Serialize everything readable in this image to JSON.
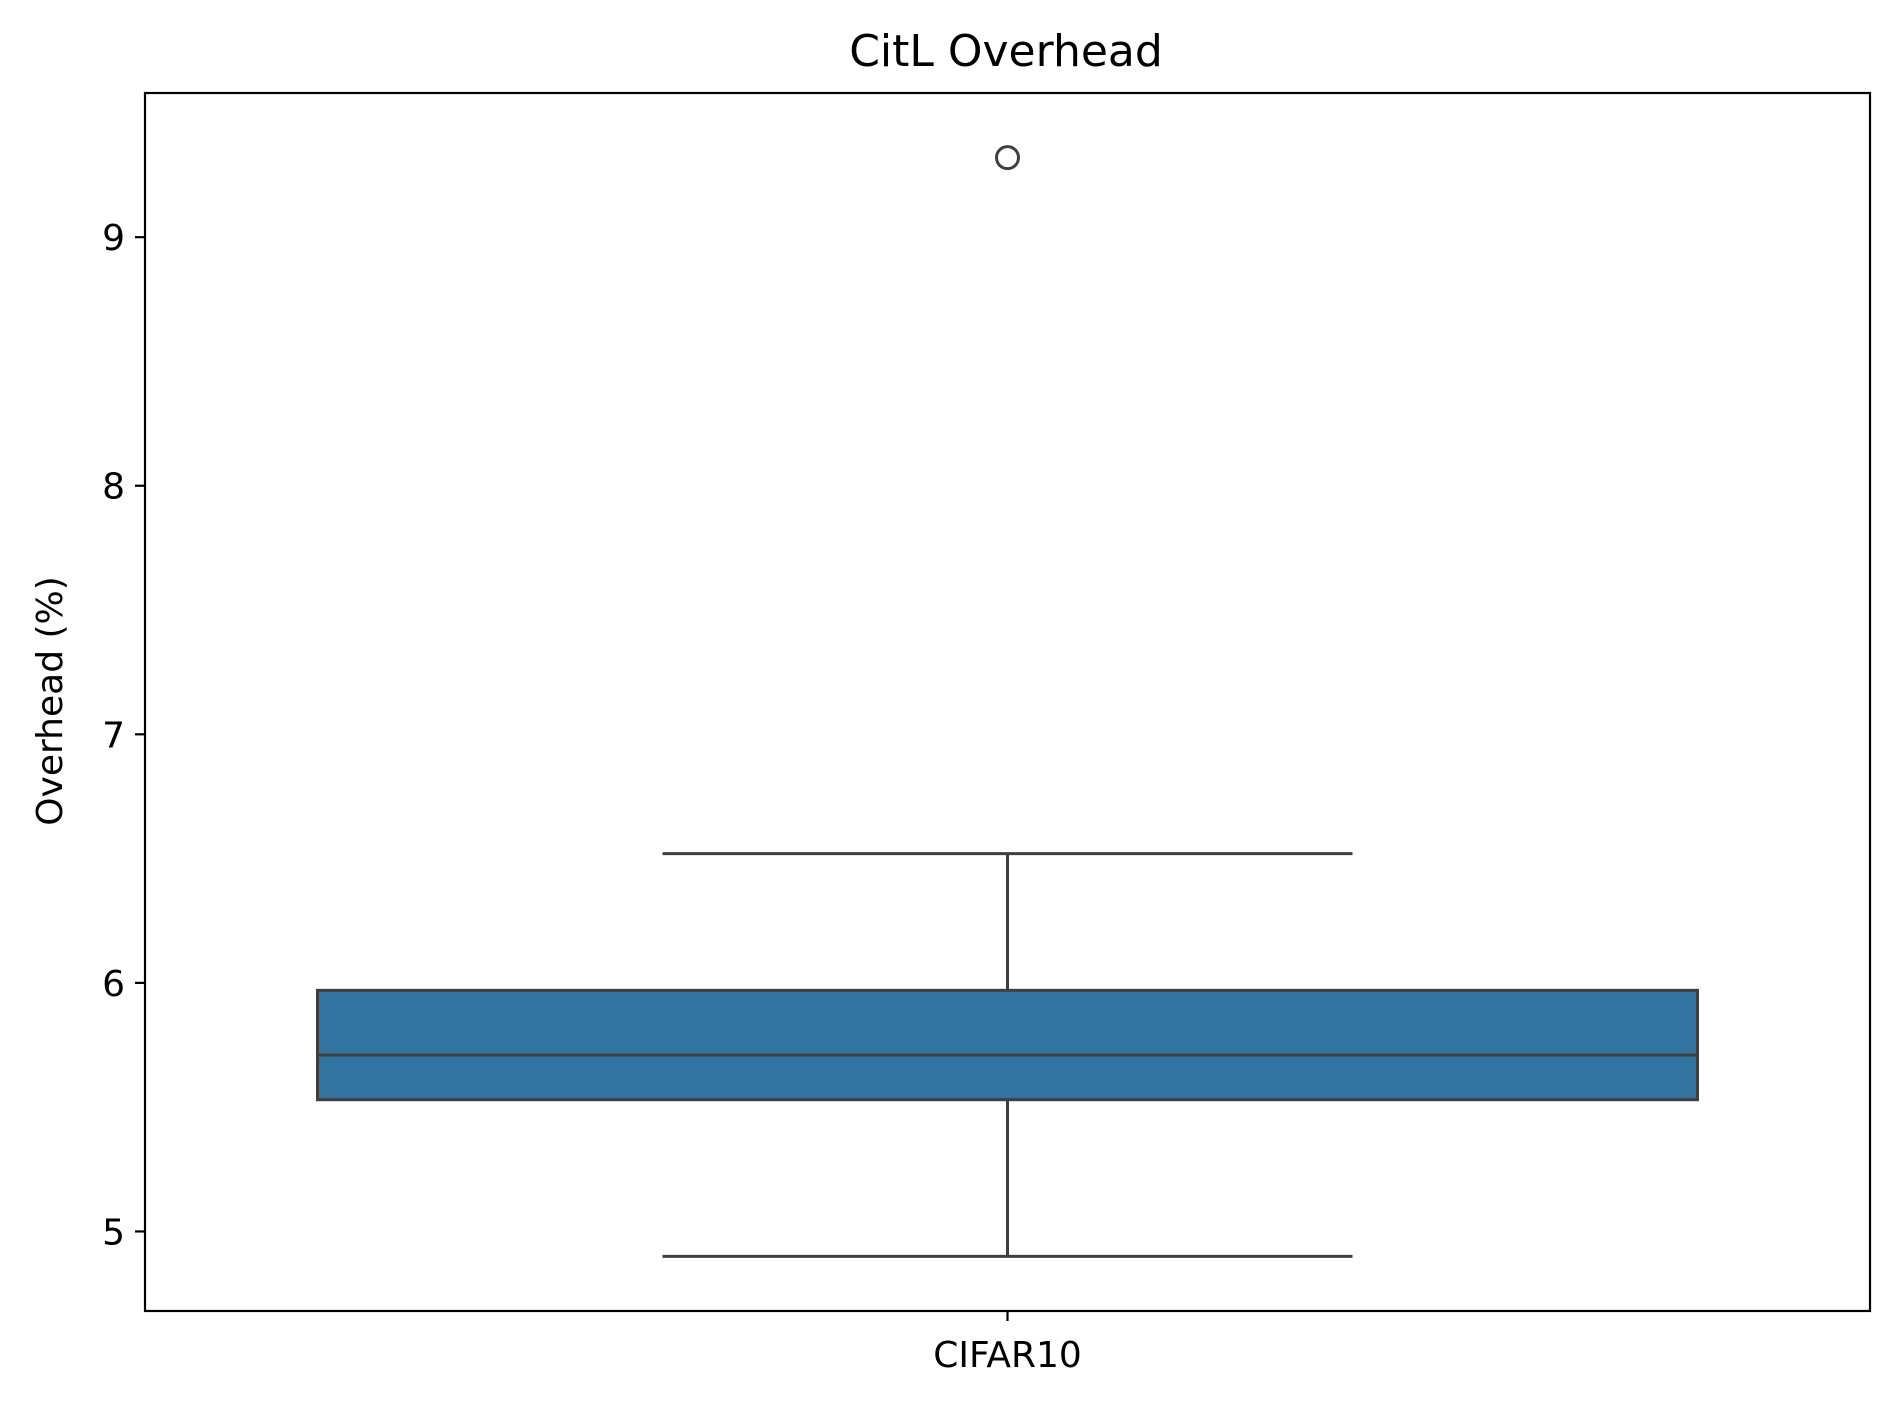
{
  "chart_data": {
    "type": "box",
    "title": "CitL Overhead",
    "xlabel": "",
    "ylabel": "Overhead (%)",
    "categories": [
      "CIFAR10"
    ],
    "ylim": [
      4.68,
      9.58
    ],
    "yticks": [
      5,
      6,
      7,
      8,
      9
    ],
    "grid": false,
    "boxes": [
      {
        "category": "CIFAR10",
        "whisker_low": 4.9,
        "q1": 5.53,
        "median": 5.71,
        "q3": 5.97,
        "whisker_high": 6.52,
        "outliers": [
          9.32
        ]
      }
    ],
    "colors": {
      "box_fill": "#3274a1",
      "box_line": "#3f3f3f",
      "axes": "#000000"
    }
  }
}
